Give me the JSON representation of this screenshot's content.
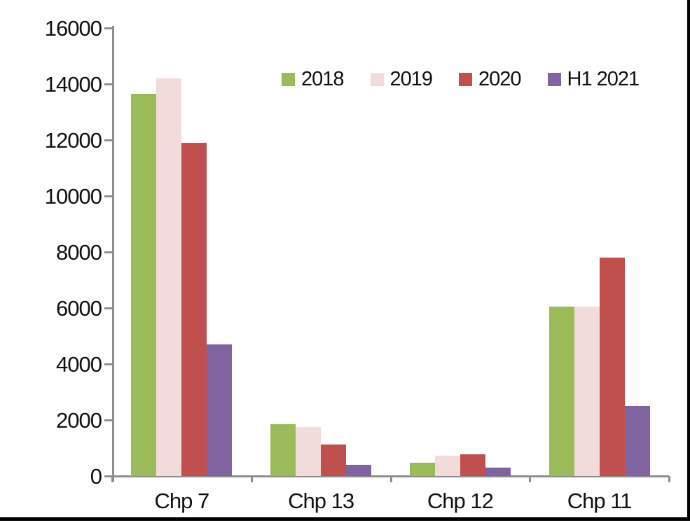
{
  "chart_data": {
    "type": "bar",
    "title": "",
    "xlabel": "",
    "ylabel": "",
    "categories": [
      "Chp 7",
      "Chp 13",
      "Chp 12",
      "Chp 11"
    ],
    "series": [
      {
        "name": "2018",
        "color": "#9BBB59",
        "values": [
          13650,
          1850,
          475,
          6050
        ]
      },
      {
        "name": "2019",
        "color": "#F2DCDB",
        "values": [
          14200,
          1750,
          725,
          6050
        ]
      },
      {
        "name": "2020",
        "color": "#C0504D",
        "values": [
          11900,
          1125,
          775,
          7800
        ]
      },
      {
        "name": "H1 2021",
        "color": "#8064A2",
        "values": [
          4700,
          400,
          300,
          2500
        ]
      }
    ],
    "ylim": [
      0,
      16000
    ],
    "ytick_step": 2000,
    "ytick_labels": [
      "0",
      "2000",
      "4000",
      "6000",
      "8000",
      "10000",
      "12000",
      "14000",
      "16000"
    ],
    "grid": false,
    "legend_position": "top-center-inside",
    "axis_color": "#8e8e8e",
    "text_color": "#111111",
    "background_color": "#ffffff"
  }
}
